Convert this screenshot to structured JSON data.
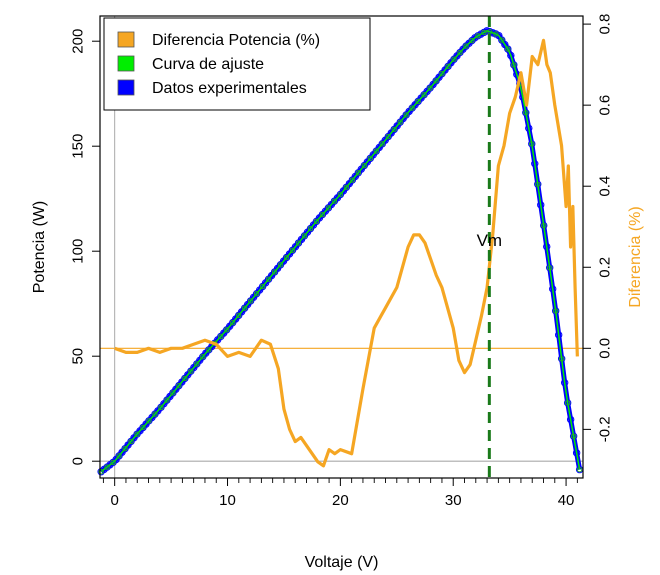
{
  "chart_data": {
    "type": "line",
    "xlabel": "Voltaje (V)",
    "ylabel": "Potencia (W)",
    "y2label": "Diferencia (%)",
    "xlim": [
      -1.3,
      41.5
    ],
    "ylim": [
      -8,
      212
    ],
    "y2lim": [
      -0.32,
      0.82
    ],
    "x_ticks": [
      0,
      10,
      20,
      30,
      40
    ],
    "y_ticks": [
      0,
      50,
      100,
      150,
      200
    ],
    "y2_ticks": [
      -0.2,
      0.0,
      0.2,
      0.4,
      0.6,
      0.8
    ],
    "y2_tick_labels": [
      "-0.2",
      "0.0",
      "0.2",
      "0.4",
      "0.6",
      "0.8"
    ],
    "grid": false,
    "legend_position": "top-left",
    "vline": {
      "x": 33.2,
      "label": "Vm",
      "color": "#1a7a1a"
    },
    "hlines": [
      {
        "axis": "y2",
        "value": 0.0,
        "color": "#f5a623"
      },
      {
        "axis": "y",
        "value": 0,
        "color": "#aaaaaa"
      }
    ],
    "vref": {
      "x": 0,
      "color": "#aaaaaa"
    },
    "series": [
      {
        "name": "Datos experimentales",
        "axis": "y",
        "color": "#0000ff",
        "x": [
          -1.2,
          0,
          2,
          4,
          6,
          8,
          10,
          12,
          14,
          16,
          18,
          20,
          22,
          24,
          26,
          28,
          30,
          31,
          32,
          33,
          34,
          35,
          36,
          37,
          38,
          39,
          40,
          41.2
        ],
        "y": [
          -5,
          0,
          13,
          25,
          38,
          51,
          63,
          76,
          89,
          102,
          115,
          127,
          140,
          153,
          166,
          178,
          191,
          197,
          202,
          205,
          203,
          195,
          178,
          150,
          113,
          75,
          32,
          -4
        ]
      },
      {
        "name": "Curva de ajuste",
        "axis": "y",
        "color": "#00ee00",
        "x": [
          -1.2,
          0,
          2,
          4,
          6,
          8,
          10,
          12,
          14,
          16,
          18,
          20,
          22,
          24,
          26,
          28,
          30,
          31,
          32,
          33,
          34,
          35,
          36,
          37,
          38,
          39,
          40,
          41.2
        ],
        "y": [
          -5,
          0,
          13,
          25,
          38,
          51,
          63,
          76,
          89,
          102,
          115,
          127,
          140,
          153,
          166,
          178,
          191,
          197,
          202,
          205,
          203,
          195,
          178,
          150,
          113,
          75,
          32,
          -4
        ]
      },
      {
        "name": "Diferencia Potencia (%)",
        "axis": "y2",
        "color": "#f5a623",
        "x": [
          0,
          1,
          2,
          3,
          4,
          5,
          6,
          7,
          8,
          9,
          10,
          11,
          12,
          13,
          13.8,
          14.5,
          15,
          15.5,
          16,
          16.5,
          17,
          17.5,
          18,
          18.5,
          19,
          19.5,
          20,
          21,
          22,
          23,
          24,
          25,
          26,
          26.5,
          27,
          27.5,
          28,
          28.5,
          29,
          30,
          30.5,
          31,
          31.5,
          32,
          32.5,
          33,
          33.5,
          34,
          34.5,
          35,
          35.5,
          36,
          36.5,
          37,
          37.5,
          38,
          38.3,
          38.6,
          39,
          39.3,
          39.6,
          40,
          40.2,
          40.4,
          40.6,
          40.8,
          41
        ],
        "y": [
          0.0,
          -0.01,
          -0.01,
          0.0,
          -0.01,
          0.0,
          0.0,
          0.01,
          0.02,
          0.01,
          -0.02,
          -0.01,
          -0.02,
          0.02,
          0.01,
          -0.05,
          -0.15,
          -0.2,
          -0.23,
          -0.22,
          -0.24,
          -0.26,
          -0.28,
          -0.29,
          -0.25,
          -0.26,
          -0.25,
          -0.26,
          -0.1,
          0.05,
          0.1,
          0.15,
          0.25,
          0.28,
          0.28,
          0.26,
          0.22,
          0.18,
          0.15,
          0.05,
          -0.03,
          -0.06,
          -0.04,
          0.02,
          0.08,
          0.15,
          0.28,
          0.45,
          0.5,
          0.58,
          0.62,
          0.68,
          0.6,
          0.72,
          0.7,
          0.76,
          0.7,
          0.68,
          0.6,
          0.55,
          0.5,
          0.35,
          0.45,
          0.25,
          0.35,
          0.15,
          -0.02
        ]
      }
    ],
    "legend": [
      {
        "label": "Diferencia Potencia (%)",
        "color": "#f5a623"
      },
      {
        "label": "Curva de ajuste",
        "color": "#00ee00"
      },
      {
        "label": "Datos experimentales",
        "color": "#0000ff"
      }
    ]
  }
}
